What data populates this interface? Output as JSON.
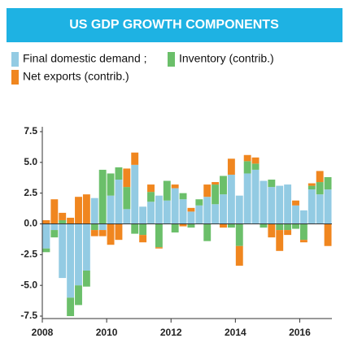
{
  "chart_data": {
    "type": "stacked_bar",
    "title": "US GDP GROWTH COMPONENTS",
    "categories": [
      "2008",
      null,
      null,
      null,
      null,
      null,
      null,
      null,
      "2010",
      null,
      null,
      null,
      null,
      null,
      null,
      null,
      "2012",
      null,
      null,
      null,
      null,
      null,
      null,
      null,
      "2014",
      null,
      null,
      null,
      null,
      null,
      null,
      null,
      "2016",
      null,
      null,
      null
    ],
    "series": [
      {
        "name": "Final domestic demand ;",
        "color": "#93cbe3",
        "values": [
          -2.0,
          -0.5,
          -4.4,
          -6.0,
          -5.0,
          -3.8,
          2.1,
          -0.5,
          2.3,
          3.6,
          1.2,
          4.8,
          1.4,
          1.8,
          2.3,
          1.9,
          2.9,
          2.0,
          1.0,
          1.5,
          2.2,
          1.6,
          2.4,
          4.0,
          2.3,
          4.1,
          4.4,
          3.5,
          3.0,
          3.1,
          3.2,
          1.5,
          1.1,
          2.8,
          2.4,
          2.8
        ]
      },
      {
        "name": "Inventory (contrib.)",
        "color": "#6bbf6a",
        "values": [
          -0.3,
          -0.6,
          0.3,
          -1.5,
          -1.6,
          -1.3,
          -0.5,
          4.4,
          1.8,
          1.0,
          1.8,
          -0.8,
          -0.9,
          0.8,
          -1.9,
          1.6,
          -0.7,
          0.5,
          -0.3,
          0.5,
          -1.4,
          1.6,
          1.5,
          -0.3,
          -1.8,
          1.0,
          0.5,
          -0.3,
          0.6,
          -0.5,
          -0.5,
          -0.4,
          -1.3,
          0.3,
          1.0,
          1.0
        ]
      },
      {
        "name": "Net exports (contrib.)",
        "color": "#f0861f",
        "values": [
          0.3,
          2.0,
          0.6,
          0.5,
          2.2,
          2.4,
          -0.5,
          -0.5,
          -1.7,
          -1.3,
          1.5,
          1.0,
          -0.6,
          0.6,
          -0.1,
          0.0,
          0.3,
          -0.2,
          0.3,
          0.0,
          1.0,
          0.2,
          -0.3,
          1.3,
          -1.6,
          0.5,
          0.5,
          0.0,
          -1.1,
          -1.7,
          -0.4,
          0.4,
          -0.2,
          0.2,
          0.9,
          -1.8
        ]
      }
    ],
    "ylim": [
      -7.5,
      7.5
    ],
    "yticks": [
      7.5,
      {
        "value": 5,
        "label": "5.0"
      },
      2.5,
      {
        "value": 0,
        "label": "0.0"
      },
      -2.5,
      {
        "value": -5,
        "label": "-5.0"
      },
      -7.5
    ],
    "header_color": "#1eb2e3"
  }
}
